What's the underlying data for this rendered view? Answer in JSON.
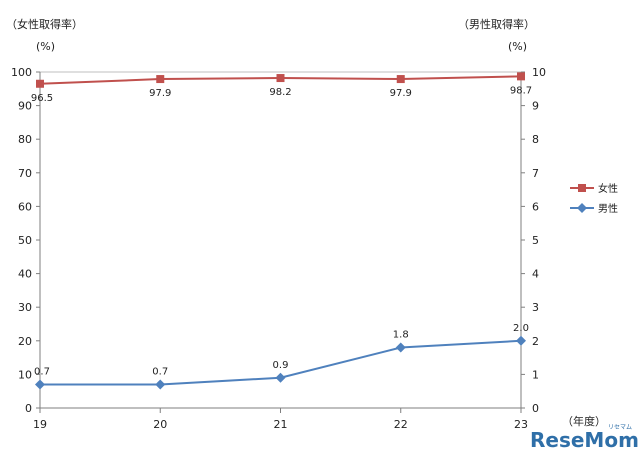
{
  "chart_data": {
    "type": "line",
    "left_axis_title": "（女性取得率）",
    "right_axis_title": "（男性取得率）",
    "left_unit": "(%)",
    "right_unit": "(%)",
    "x_unit": "（年度）",
    "categories": [
      "19",
      "20",
      "21",
      "22",
      "23"
    ],
    "y_left": {
      "min": 0,
      "max": 100,
      "step": 10,
      "ticks": [
        "0",
        "10",
        "20",
        "30",
        "40",
        "50",
        "60",
        "70",
        "80",
        "90",
        "100"
      ]
    },
    "y_right": {
      "min": 0,
      "max": 10,
      "step": 1,
      "ticks": [
        "0",
        "1",
        "2",
        "3",
        "4",
        "5",
        "6",
        "7",
        "8",
        "9",
        "10"
      ]
    },
    "series": [
      {
        "name": "女性",
        "axis": "left",
        "color": "#c0504d",
        "marker": "square",
        "values": [
          96.5,
          97.9,
          98.2,
          97.9,
          98.7
        ],
        "labels": [
          "96.5",
          "97.9",
          "98.2",
          "97.9",
          "98.7"
        ]
      },
      {
        "name": "男性",
        "axis": "right",
        "color": "#4f81bd",
        "marker": "diamond",
        "values": [
          0.7,
          0.7,
          0.9,
          1.8,
          2.0
        ],
        "labels": [
          "0.7",
          "0.7",
          "0.9",
          "1.8",
          "2.0"
        ]
      }
    ],
    "legend_position": "right",
    "grid": false
  },
  "watermark": {
    "text": "ReseMom",
    "small": "リセマム"
  }
}
